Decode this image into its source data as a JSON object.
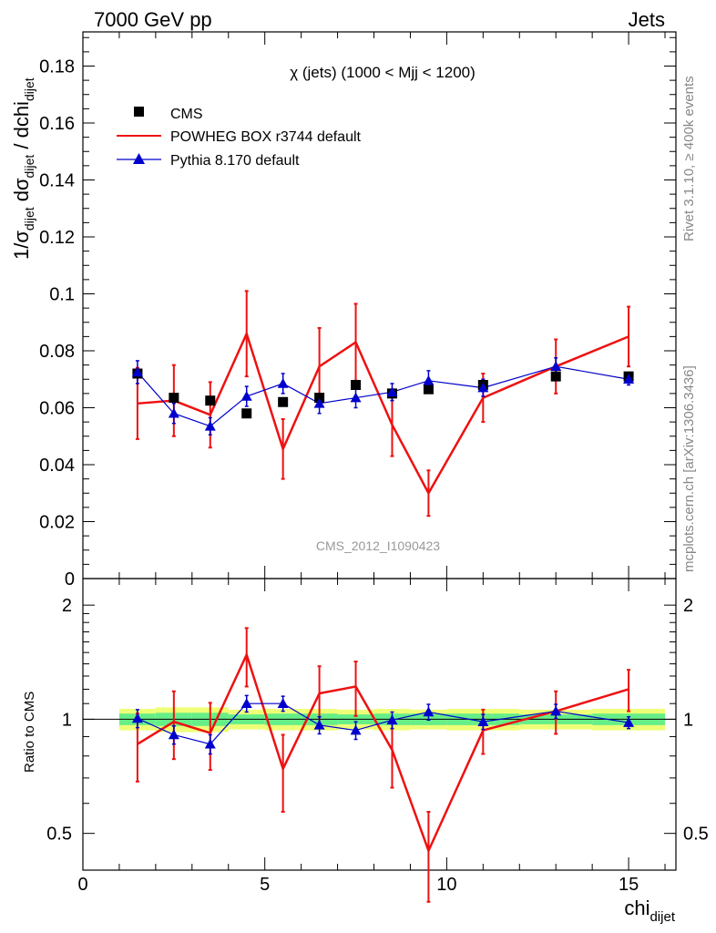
{
  "header": {
    "left": "7000 GeV pp",
    "right": "Jets"
  },
  "side_text": {
    "rivet": "Rivet 3.1.10, ≥ 400k events",
    "mcplots": "mcplots.cern.ch [arXiv:1306.3436]"
  },
  "watermark": "CMS_2012_I1090423",
  "colors": {
    "cms": "#000000",
    "powheg": "#ee1111",
    "pythia": "#0000cc",
    "band_inner": "#66ee88",
    "band_outer": "#eeff77"
  },
  "chart_data": [
    {
      "type": "line",
      "title": "χ (jets) (1000 < Mjj < 1200)",
      "ylabel": {
        "main": "1/σ",
        "sub1": "dijet",
        "mid": " dσ",
        "sub2": "dijet",
        "tail": " / dchi",
        "sub3": "dijet"
      },
      "xlim": [
        0,
        16.3
      ],
      "ylim": [
        0,
        0.192
      ],
      "y_ticks": [
        0,
        0.02,
        0.04,
        0.06,
        0.08,
        0.1,
        0.12,
        0.14,
        0.16,
        0.18
      ],
      "y_tick_labels": [
        "0",
        "0.02",
        "0.04",
        "0.06",
        "0.08",
        "0.1",
        "0.12",
        "0.14",
        "0.16",
        "0.18"
      ],
      "legend": {
        "position": "top-left",
        "entries": [
          "CMS",
          "POWHEG BOX r3744 default",
          "Pythia 8.170 default"
        ]
      },
      "series": [
        {
          "name": "CMS",
          "style": "markers",
          "x": [
            1.5,
            2.5,
            3.5,
            4.5,
            5.5,
            6.5,
            7.5,
            8.5,
            9.5,
            11,
            13,
            15
          ],
          "y": [
            0.072,
            0.0635,
            0.0625,
            0.058,
            0.062,
            0.0635,
            0.068,
            0.065,
            0.0665,
            0.068,
            0.071,
            0.071
          ]
        },
        {
          "name": "POWHEG BOX r3744 default",
          "style": "line",
          "x": [
            1.5,
            2.5,
            3.5,
            4.5,
            5.5,
            6.5,
            7.5,
            8.5,
            9.5,
            11,
            13,
            15
          ],
          "y": [
            0.0615,
            0.0625,
            0.0575,
            0.086,
            0.0455,
            0.0745,
            0.083,
            0.054,
            0.03,
            0.0635,
            0.0745,
            0.085
          ],
          "err": [
            0.0125,
            0.0125,
            0.0115,
            0.015,
            0.0105,
            0.0135,
            0.0135,
            0.011,
            0.008,
            0.0085,
            0.0095,
            0.0105
          ]
        },
        {
          "name": "Pythia 8.170 default",
          "style": "line-triangles",
          "x": [
            1.5,
            2.5,
            3.5,
            4.5,
            5.5,
            6.5,
            7.5,
            8.5,
            9.5,
            11,
            13,
            15
          ],
          "y": [
            0.0725,
            0.058,
            0.0535,
            0.064,
            0.0685,
            0.0615,
            0.0635,
            0.0655,
            0.0695,
            0.067,
            0.0745,
            0.07
          ],
          "err": [
            0.004,
            0.0035,
            0.003,
            0.0035,
            0.0035,
            0.0035,
            0.0035,
            0.003,
            0.0035,
            0.003,
            0.003,
            0.002
          ]
        }
      ]
    },
    {
      "type": "line",
      "ylabel": "Ratio to CMS",
      "xlabel": {
        "main": "chi",
        "sub": "dijet"
      },
      "xlim": [
        0,
        16.3
      ],
      "ylim": [
        0.4,
        2.35
      ],
      "y_scale": "log",
      "y_ticks": [
        0.5,
        1,
        2
      ],
      "y_tick_labels": [
        "0.5",
        "1",
        "2"
      ],
      "x_ticks": [
        0,
        5,
        10,
        15
      ],
      "x_tick_labels": [
        "0",
        "5",
        "10",
        "15"
      ],
      "band": {
        "x_edges": [
          1,
          2,
          3,
          4,
          5,
          6,
          7,
          8,
          9,
          10,
          12,
          14,
          16
        ],
        "inner_half_width": [
          0.035,
          0.04,
          0.04,
          0.03,
          0.035,
          0.035,
          0.03,
          0.035,
          0.035,
          0.035,
          0.03,
          0.035
        ],
        "outer_half_width": [
          0.065,
          0.075,
          0.075,
          0.06,
          0.065,
          0.065,
          0.06,
          0.065,
          0.06,
          0.065,
          0.06,
          0.065
        ]
      },
      "series": [
        {
          "name": "POWHEG BOX r3744 default",
          "x": [
            1.5,
            2.5,
            3.5,
            4.5,
            5.5,
            6.5,
            7.5,
            8.5,
            9.5,
            11,
            13,
            15
          ],
          "y": [
            0.86,
            0.985,
            0.92,
            1.48,
            0.74,
            1.17,
            1.22,
            0.83,
            0.45,
            0.935,
            1.05,
            1.2
          ],
          "err": [
            0.175,
            0.2,
            0.185,
            0.26,
            0.17,
            0.21,
            0.2,
            0.17,
            0.12,
            0.125,
            0.135,
            0.15
          ]
        },
        {
          "name": "Pythia 8.170 default",
          "x": [
            1.5,
            2.5,
            3.5,
            4.5,
            5.5,
            6.5,
            7.5,
            8.5,
            9.5,
            11,
            13,
            15
          ],
          "y": [
            1.005,
            0.91,
            0.86,
            1.1,
            1.1,
            0.965,
            0.935,
            0.995,
            1.045,
            0.985,
            1.05,
            0.98
          ],
          "err": [
            0.055,
            0.05,
            0.05,
            0.055,
            0.05,
            0.05,
            0.05,
            0.05,
            0.05,
            0.045,
            0.045,
            0.035
          ]
        }
      ]
    }
  ]
}
